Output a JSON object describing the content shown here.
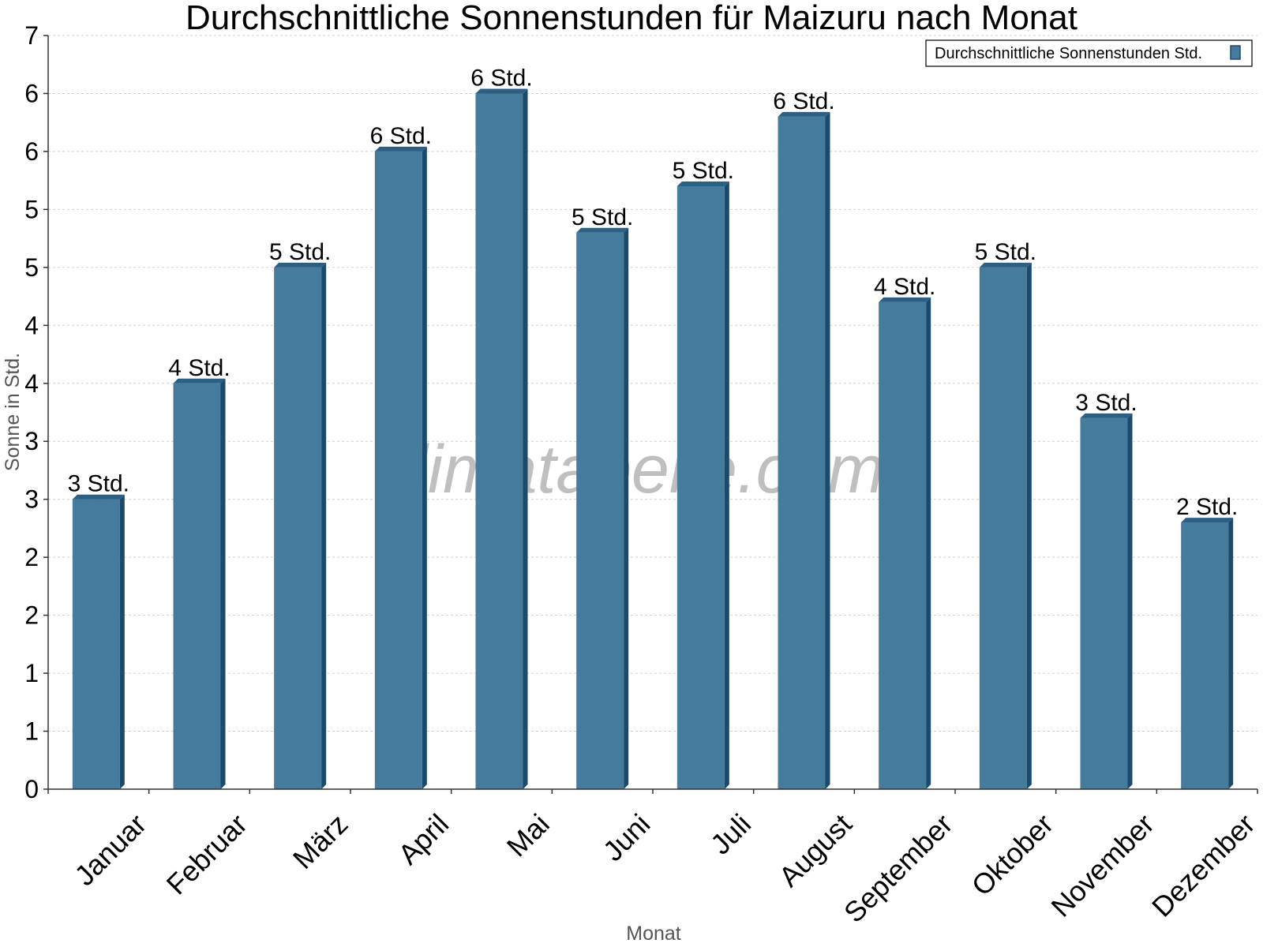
{
  "chart_data": {
    "type": "bar",
    "title": "Durchschnittliche Sonnenstunden für Maizuru nach Monat",
    "xlabel": "Monat",
    "ylabel": "Sonne in Std.",
    "ylim": [
      0,
      6.5
    ],
    "yticks": [
      0,
      0.5,
      1,
      1.5,
      2,
      2.5,
      3,
      3.5,
      4,
      4.5,
      5,
      5.5,
      6,
      6.5
    ],
    "ytick_labels": [
      "0",
      "1",
      "1",
      "2",
      "2",
      "3",
      "3",
      "4",
      "4",
      "5",
      "5",
      "6",
      "6",
      "7"
    ],
    "grid": true,
    "legend": {
      "position": "top-right",
      "entries": [
        "Durchschnittliche Sonnenstunden Std."
      ]
    },
    "categories": [
      "Januar",
      "Februar",
      "März",
      "April",
      "Mai",
      "Juni",
      "Juli",
      "August",
      "September",
      "Oktober",
      "November",
      "Dezember"
    ],
    "series": [
      {
        "name": "Durchschnittliche Sonnenstunden Std.",
        "color": "#457b9d",
        "values": [
          2.5,
          3.5,
          4.5,
          5.5,
          6.0,
          4.8,
          5.2,
          5.8,
          4.2,
          4.5,
          3.2,
          2.3
        ],
        "labels": [
          "3 Std.",
          "4 Std.",
          "5 Std.",
          "6 Std.",
          "6 Std.",
          "5 Std.",
          "5 Std.",
          "6 Std.",
          "4 Std.",
          "5 Std.",
          "3 Std.",
          "2 Std."
        ]
      }
    ],
    "watermark": "klimatabelle.com"
  }
}
